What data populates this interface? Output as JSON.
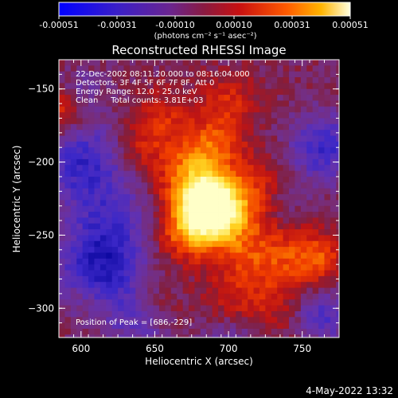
{
  "colorbar": {
    "ticks": [
      "-0.00051",
      "-0.00031",
      "-0.00010",
      "0.00010",
      "0.00031",
      "0.00051"
    ],
    "unit_label": "(photons cm⁻² s⁻¹ asec⁻²)",
    "range": [
      -0.00051,
      0.00051
    ]
  },
  "chart_data": {
    "type": "heatmap",
    "title": "Reconstructed RHESSI Image",
    "xlabel": "Heliocentric X (arcsec)",
    "ylabel": "Heliocentric Y (arcsec)",
    "xlim": [
      585,
      775
    ],
    "ylim": [
      -320,
      -130
    ],
    "x_ticks": [
      600,
      650,
      700,
      750
    ],
    "y_ticks": [
      -150,
      -200,
      -250,
      -300
    ],
    "annotations": [
      "22-Dec-2002 08:11:20.000 to 08:16:04.000",
      "Detectors: 3F 4F 5F 6F 7F 8F, Att 0",
      "Energy Range: 12.0 - 25.0 keV",
      "Clean     Total counts: 3.81E+03"
    ],
    "peak_label": "Position of Peak = [686,-229]",
    "peak": [
      686,
      -229
    ],
    "colormap": [
      "#000090",
      "#3020c0",
      "#6a30b0",
      "#9a2050",
      "#d01818",
      "#ff5a00",
      "#ffc000",
      "#ffffc0"
    ]
  },
  "footer": {
    "timestamp": "4-May-2022 13:32"
  }
}
